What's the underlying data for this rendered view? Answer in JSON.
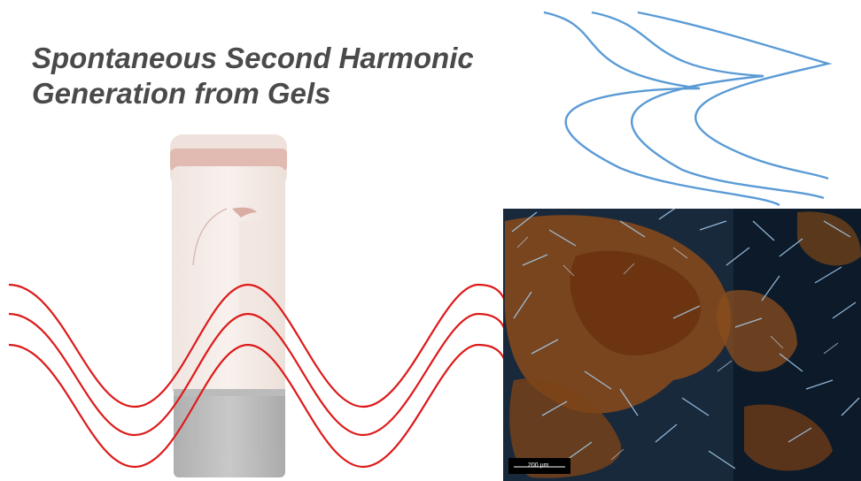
{
  "title": {
    "line1": "Spontaneous Second Harmonic",
    "line2": "Generation from Gels"
  },
  "micrograph": {
    "scale_bar_label": "200 μm"
  },
  "colors": {
    "title": "#4a4a4a",
    "fundamental_wave": "#dd1a1a",
    "harmonic_wave": "#5b9bd5",
    "micrograph_background": "#0c1a2a",
    "gel_crystal_brown": "#8a4a1a",
    "crystal_blue": "#a8d0f0"
  }
}
